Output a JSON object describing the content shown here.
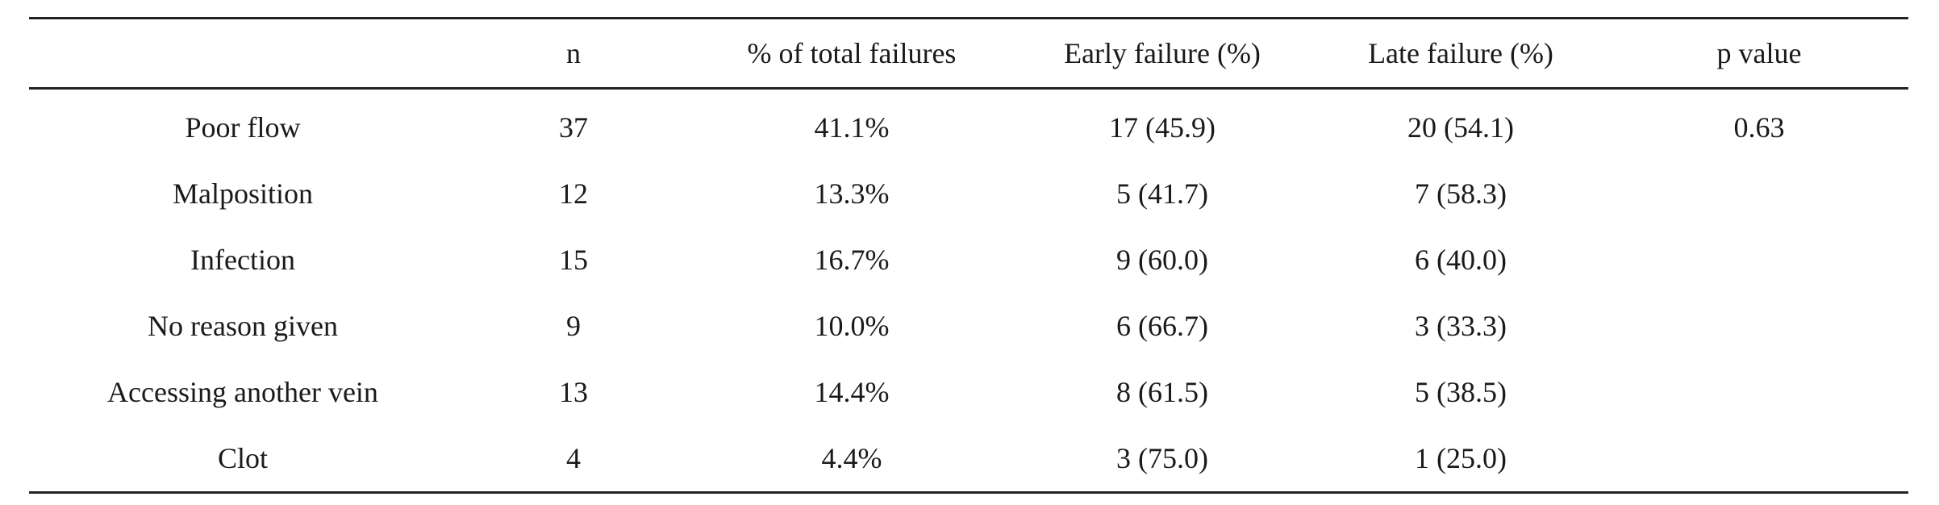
{
  "table": {
    "headers": [
      "",
      "n",
      "% of total failures",
      "Early failure (%)",
      "Late failure (%)",
      "p value"
    ],
    "rows": [
      [
        "Poor flow",
        "37",
        "41.1%",
        "17 (45.9)",
        "20 (54.1)",
        "0.63"
      ],
      [
        "Malposition",
        "12",
        "13.3%",
        "5 (41.7)",
        "7 (58.3)",
        ""
      ],
      [
        "Infection",
        "15",
        "16.7%",
        "9 (60.0)",
        "6 (40.0)",
        ""
      ],
      [
        "No reason given",
        "9",
        "10.0%",
        "6 (66.7)",
        "3 (33.3)",
        ""
      ],
      [
        "Accessing another vein",
        "13",
        "14.4%",
        "8 (61.5)",
        "5 (38.5)",
        ""
      ],
      [
        "Clot",
        "4",
        "4.4%",
        "3 (75.0)",
        "1 (25.0)",
        ""
      ]
    ]
  }
}
